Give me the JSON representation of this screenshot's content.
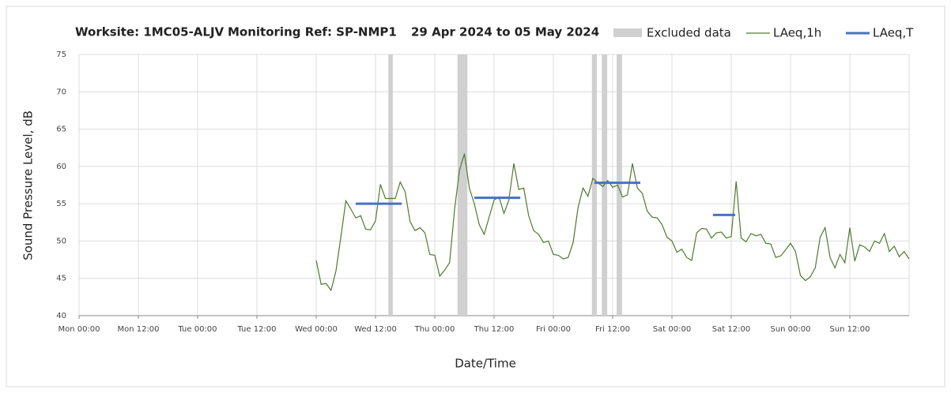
{
  "chart_data": {
    "type": "line",
    "title_parts": [
      "Worksite: 1MC05-ALJV",
      "Monitoring Ref: SP-NMP1",
      "29 Apr 2024 to 05 May 2024"
    ],
    "x_label": "Date/Time",
    "y_label": "Sound Pressure Level, dB",
    "xlim": [
      0,
      168
    ],
    "ylim": [
      40,
      75
    ],
    "yticks": [
      40,
      45,
      50,
      55,
      60,
      65,
      70,
      75
    ],
    "xticks": [
      {
        "value": 0,
        "label": "Mon 00:00"
      },
      {
        "value": 12,
        "label": "Mon 12:00"
      },
      {
        "value": 24,
        "label": "Tue 00:00"
      },
      {
        "value": 36,
        "label": "Tue 12:00"
      },
      {
        "value": 48,
        "label": "Wed 00:00"
      },
      {
        "value": 60,
        "label": "Wed 12:00"
      },
      {
        "value": 72,
        "label": "Thu 00:00"
      },
      {
        "value": 84,
        "label": "Thu 12:00"
      },
      {
        "value": 96,
        "label": "Fri 00:00"
      },
      {
        "value": 108,
        "label": "Fri 12:00"
      },
      {
        "value": 120,
        "label": "Sat 00:00"
      },
      {
        "value": 132,
        "label": "Sat 12:00"
      },
      {
        "value": 144,
        "label": "Sun 00:00"
      },
      {
        "value": 156,
        "label": "Sun 12:00"
      }
    ],
    "grid": true,
    "excluded": {
      "name": "Excluded data",
      "color": "#d0d0d0",
      "ranges": [
        [
          62.6,
          63.5
        ],
        [
          76.6,
          78.6
        ],
        [
          103.8,
          104.8
        ],
        [
          105.8,
          106.9
        ],
        [
          108.8,
          109.9
        ]
      ]
    },
    "series": [
      {
        "name": "LAeq,1h",
        "color": "#4f7a2e",
        "x": [
          48,
          49,
          50,
          51,
          52,
          53,
          54,
          55,
          56,
          57,
          58,
          59,
          60,
          61,
          62,
          63,
          64,
          65,
          66,
          67,
          68,
          69,
          70,
          71,
          72,
          73,
          74,
          75,
          76,
          77,
          78,
          79,
          80,
          81,
          82,
          83,
          84,
          85,
          86,
          87,
          88,
          89,
          90,
          91,
          92,
          93,
          94,
          95,
          96,
          97,
          98,
          99,
          100,
          101,
          102,
          103,
          104,
          105,
          106,
          107,
          108,
          109,
          110,
          111,
          112,
          113,
          114,
          115,
          116,
          117,
          118,
          119,
          120,
          121,
          122,
          123,
          124,
          125,
          126,
          127,
          128,
          129,
          130,
          131,
          132,
          133,
          134,
          135,
          136,
          137,
          138,
          139,
          140,
          141,
          142,
          143,
          144,
          145,
          146,
          147,
          148,
          149,
          150,
          151,
          152,
          153,
          154,
          155,
          156,
          157,
          158,
          159,
          160,
          161,
          162,
          163,
          164,
          165,
          166,
          167,
          168
        ],
        "values": [
          47.4,
          44.2,
          44.3,
          43.4,
          46.0,
          50.6,
          55.4,
          54.3,
          53.1,
          53.4,
          51.6,
          51.5,
          52.7,
          57.6,
          55.7,
          55.7,
          55.7,
          57.9,
          56.6,
          52.6,
          51.4,
          51.8,
          51.1,
          48.2,
          48.1,
          45.3,
          46.1,
          47.1,
          54.2,
          59.5,
          61.7,
          57.1,
          55.0,
          52.2,
          50.9,
          53.2,
          55.5,
          55.9,
          53.7,
          55.5,
          60.4,
          56.9,
          57.1,
          53.4,
          51.4,
          50.9,
          49.8,
          50.0,
          48.2,
          48.1,
          47.6,
          47.8,
          49.8,
          54.5,
          57.1,
          56.0,
          58.4,
          57.8,
          57.3,
          58.1,
          57.2,
          57.5,
          55.9,
          56.2,
          60.4,
          57.1,
          56.4,
          54.0,
          53.2,
          53.1,
          52.2,
          50.5,
          50.0,
          48.5,
          48.9,
          47.8,
          47.4,
          51.1,
          51.7,
          51.6,
          50.4,
          51.1,
          51.2,
          50.4,
          50.6,
          58.0,
          50.4,
          49.9,
          51.0,
          50.7,
          50.9,
          49.7,
          49.6,
          47.8,
          48.0,
          48.8,
          49.7,
          48.6,
          45.4,
          44.7,
          45.2,
          46.4,
          50.5,
          51.8,
          47.8,
          46.4,
          48.2,
          47.1,
          51.8,
          47.3,
          49.5,
          49.2,
          48.6,
          50.0,
          49.7,
          51.0,
          48.6,
          49.3,
          47.9,
          48.6,
          47.6
        ]
      },
      {
        "name": "LAeq,T",
        "color": "#4472c4",
        "segments": [
          {
            "x": [
              56,
              65.3
            ],
            "value": 55.0
          },
          {
            "x": [
              80,
              89.3
            ],
            "value": 55.8
          },
          {
            "x": [
              104.3,
              113.6
            ],
            "value": 57.8
          },
          {
            "x": [
              128.3,
              132.8
            ],
            "value": 53.5
          }
        ]
      }
    ]
  }
}
